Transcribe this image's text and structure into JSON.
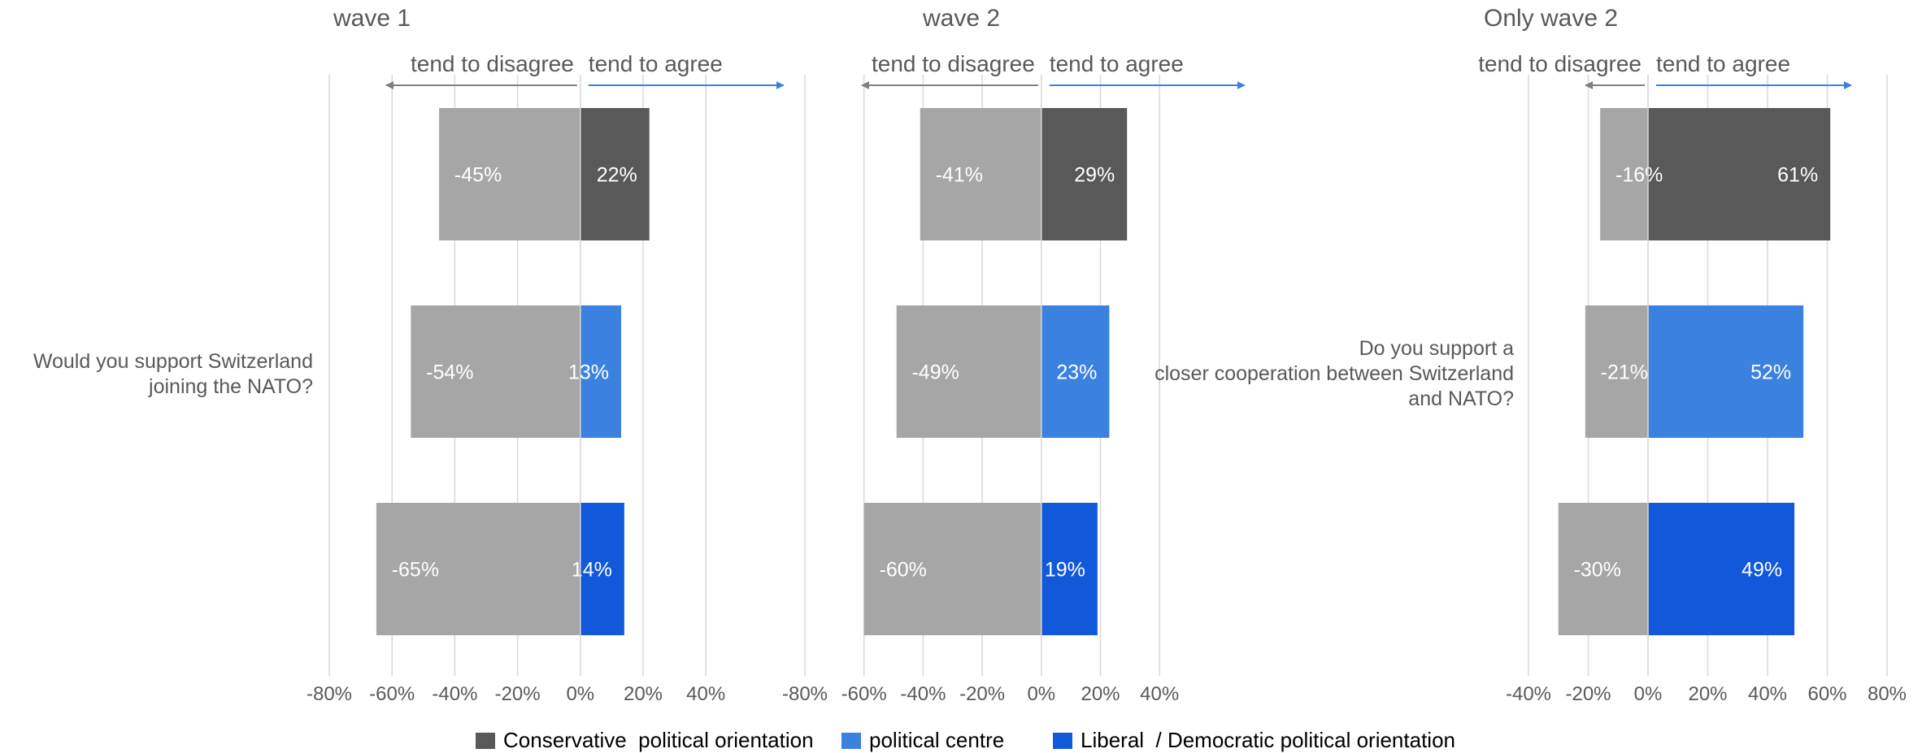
{
  "chart_data": [
    {
      "type": "bar",
      "orientation": "horizontal-diverging",
      "title": "wave 1",
      "question": "Would you support Switzerland joining the NATO?",
      "left_label": "tend to disagree",
      "right_label": "tend to agree",
      "xlim": [
        -80,
        40
      ],
      "xticks": [
        -80,
        -60,
        -40,
        -20,
        0,
        20,
        40
      ],
      "tick_labels": [
        "-80%",
        "-60%",
        "-40%",
        "-20%",
        "0%",
        "20%",
        "40%"
      ],
      "categories": [
        "Conservative political orientation",
        "political centre",
        "Liberal / Democratic political orientation"
      ],
      "disagree": [
        -45,
        -54,
        -65
      ],
      "agree": [
        22,
        13,
        14
      ],
      "disagree_labels": [
        "-45%",
        "-54%",
        "-65%"
      ],
      "agree_labels": [
        "22%",
        "13%",
        "14%"
      ],
      "grid": true
    },
    {
      "type": "bar",
      "orientation": "horizontal-diverging",
      "title": "wave 2",
      "question": "",
      "left_label": "tend to disagree",
      "right_label": "tend to agree",
      "xlim": [
        -80,
        40
      ],
      "xticks": [
        -80,
        -60,
        -40,
        -20,
        0,
        20,
        40
      ],
      "tick_labels": [
        "-80%",
        "-60%",
        "-40%",
        "-20%",
        "0%",
        "20%",
        "40%"
      ],
      "categories": [
        "Conservative political orientation",
        "political centre",
        "Liberal / Democratic political orientation"
      ],
      "disagree": [
        -41,
        -49,
        -60
      ],
      "agree": [
        29,
        23,
        19
      ],
      "disagree_labels": [
        "-41%",
        "-49%",
        "-60%"
      ],
      "agree_labels": [
        "29%",
        "23%",
        "19%"
      ],
      "grid": true
    },
    {
      "type": "bar",
      "orientation": "horizontal-diverging",
      "title": "Only wave 2",
      "question": "Do you support a closer cooperation between Switzerland and NATO?",
      "left_label": "tend to disagree",
      "right_label": "tend to agree",
      "xlim": [
        -40,
        80
      ],
      "xticks": [
        -40,
        -20,
        0,
        20,
        40,
        60,
        80
      ],
      "tick_labels": [
        "-40%",
        "-20%",
        "0%",
        "20%",
        "40%",
        "60%",
        "80%"
      ],
      "categories": [
        "Conservative political orientation",
        "political centre",
        "Liberal / Democratic political orientation"
      ],
      "disagree": [
        -16,
        -21,
        -30
      ],
      "agree": [
        61,
        52,
        49
      ],
      "disagree_labels": [
        "-16%",
        "-21%",
        "-30%"
      ],
      "agree_labels": [
        "61%",
        "52%",
        "49%"
      ],
      "grid": true
    }
  ],
  "legend": {
    "placement": "bottom",
    "items": [
      {
        "label": "Conservative  political orientation",
        "color": "#595959"
      },
      {
        "label": "political centre",
        "color": "#3b82e0"
      },
      {
        "label": "Liberal  / Democratic political orientation",
        "color": "#1158da"
      }
    ]
  },
  "colors": {
    "disagree": "#a6a6a6",
    "agree_series": [
      "#595959",
      "#3b82e0",
      "#1158da"
    ],
    "left_arrow": "#808080",
    "right_arrow": "#3b82e0",
    "grid": "#d9d9d9",
    "text": "#595959"
  }
}
